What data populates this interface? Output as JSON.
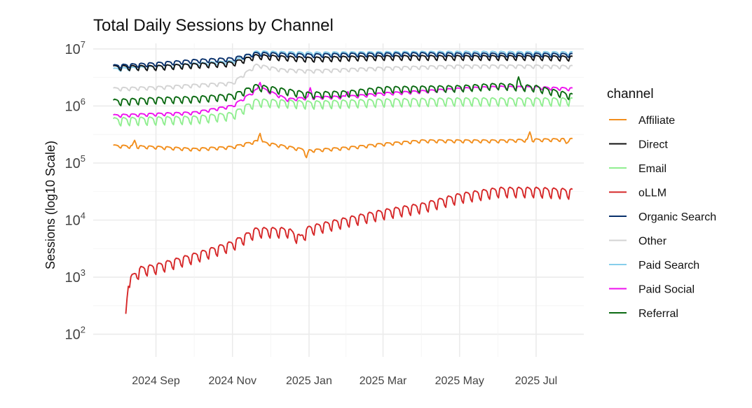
{
  "chart_data": {
    "type": "line",
    "title": "Total Daily Sessions by Channel",
    "xlabel": "",
    "ylabel": "Sessions (log10 Scale)",
    "yscale": "log10",
    "ylim": [
      40,
      12500000
    ],
    "xlim": [
      "2024-07-13",
      "2025-08-08"
    ],
    "grid": true,
    "legend_title": "channel",
    "legend_position": "right",
    "x_ticks": [
      {
        "date": "2024-09-01",
        "label": "2024 Sep"
      },
      {
        "date": "2024-11-01",
        "label": "2024 Nov"
      },
      {
        "date": "2025-01-01",
        "label": "2025 Jan"
      },
      {
        "date": "2025-03-01",
        "label": "2025 Mar"
      },
      {
        "date": "2025-05-01",
        "label": "2025 May"
      },
      {
        "date": "2025-07-01",
        "label": "2025 Jul"
      }
    ],
    "y_ticks": [
      {
        "value": 100,
        "base": "10",
        "exp": "2"
      },
      {
        "value": 1000,
        "base": "10",
        "exp": "3"
      },
      {
        "value": 10000,
        "base": "10",
        "exp": "4"
      },
      {
        "value": 100000,
        "base": "10",
        "exp": "5"
      },
      {
        "value": 1000000,
        "base": "10",
        "exp": "6"
      },
      {
        "value": 10000000,
        "base": "10",
        "exp": "7"
      }
    ],
    "series": [
      {
        "name": "Affiliate",
        "color": "#f28e1c",
        "start": "2024-07-29",
        "end": "2025-07-30",
        "points": [
          [
            "2024-07-29",
            200000
          ],
          [
            "2024-09-01",
            190000
          ],
          [
            "2024-10-01",
            175000
          ],
          [
            "2024-11-01",
            190000
          ],
          [
            "2024-11-20",
            240000
          ],
          [
            "2024-12-10",
            200000
          ],
          [
            "2025-01-01",
            165000
          ],
          [
            "2025-02-01",
            185000
          ],
          [
            "2025-03-01",
            215000
          ],
          [
            "2025-04-01",
            245000
          ],
          [
            "2025-05-01",
            245000
          ],
          [
            "2025-06-01",
            245000
          ],
          [
            "2025-07-01",
            255000
          ],
          [
            "2025-07-30",
            260000
          ]
        ],
        "amp": 0.06,
        "spikes": [
          [
            "2024-08-15",
            1.25
          ],
          [
            "2024-11-23",
            1.5
          ],
          [
            "2024-12-30",
            0.72
          ],
          [
            "2025-06-26",
            1.35
          ],
          [
            "2025-07-25",
            0.85
          ]
        ]
      },
      {
        "name": "Direct",
        "color": "#111111",
        "start": "2024-07-29",
        "end": "2025-07-30",
        "points": [
          [
            "2024-07-29",
            4800000
          ],
          [
            "2024-09-01",
            4800000
          ],
          [
            "2024-10-01",
            5200000
          ],
          [
            "2024-11-01",
            5600000
          ],
          [
            "2024-11-20",
            7500000
          ],
          [
            "2025-01-01",
            6700000
          ],
          [
            "2025-02-01",
            7000000
          ],
          [
            "2025-03-01",
            7200000
          ],
          [
            "2025-05-01",
            7200000
          ],
          [
            "2025-07-01",
            7200000
          ],
          [
            "2025-07-30",
            7000000
          ]
        ],
        "amp": 0.1,
        "spikes": []
      },
      {
        "name": "Email",
        "color": "#90ee90",
        "start": "2024-07-29",
        "end": "2025-07-30",
        "points": [
          [
            "2024-07-29",
            560000
          ],
          [
            "2024-09-01",
            580000
          ],
          [
            "2024-10-01",
            600000
          ],
          [
            "2024-11-01",
            700000
          ],
          [
            "2024-11-20",
            1200000
          ],
          [
            "2024-12-15",
            1150000
          ],
          [
            "2025-01-01",
            1100000
          ],
          [
            "2025-02-01",
            1150000
          ],
          [
            "2025-03-01",
            1200000
          ],
          [
            "2025-05-01",
            1250000
          ],
          [
            "2025-07-01",
            1250000
          ],
          [
            "2025-07-30",
            1250000
          ]
        ],
        "amp": 0.16,
        "spikes": []
      },
      {
        "name": "oLLM",
        "color": "#d62728",
        "start": "2024-08-08",
        "end": "2025-07-30",
        "points": [
          [
            "2024-08-08",
            210
          ],
          [
            "2024-08-10",
            850
          ],
          [
            "2024-08-20",
            1350
          ],
          [
            "2024-09-01",
            1500
          ],
          [
            "2024-10-01",
            2300
          ],
          [
            "2024-11-01",
            3800
          ],
          [
            "2024-11-20",
            6500
          ],
          [
            "2024-12-15",
            6500
          ],
          [
            "2024-12-25",
            4800
          ],
          [
            "2025-01-01",
            7000
          ],
          [
            "2025-02-01",
            10000
          ],
          [
            "2025-03-01",
            13500
          ],
          [
            "2025-04-01",
            17500
          ],
          [
            "2025-05-01",
            26000
          ],
          [
            "2025-06-01",
            33000
          ],
          [
            "2025-07-01",
            33000
          ],
          [
            "2025-07-30",
            31000
          ]
        ],
        "amp": 0.2,
        "spikes": []
      },
      {
        "name": "Organic Search",
        "color": "#08306b",
        "start": "2024-07-29",
        "end": "2025-07-30",
        "points": [
          [
            "2024-07-29",
            5000000
          ],
          [
            "2024-09-01",
            5500000
          ],
          [
            "2024-10-01",
            6200000
          ],
          [
            "2024-11-01",
            6700000
          ],
          [
            "2024-11-20",
            8300000
          ],
          [
            "2025-01-01",
            7800000
          ],
          [
            "2025-02-01",
            8000000
          ],
          [
            "2025-04-01",
            8200000
          ],
          [
            "2025-06-01",
            8000000
          ],
          [
            "2025-07-01",
            8000000
          ],
          [
            "2025-07-30",
            7900000
          ]
        ],
        "amp": 0.08,
        "spikes": []
      },
      {
        "name": "Other",
        "color": "#d3d3d3",
        "start": "2024-07-29",
        "end": "2025-07-30",
        "points": [
          [
            "2024-07-29",
            2000000
          ],
          [
            "2024-09-01",
            2100000
          ],
          [
            "2024-10-01",
            2300000
          ],
          [
            "2024-11-01",
            2500000
          ],
          [
            "2024-11-20",
            5200000
          ],
          [
            "2024-12-10",
            4300000
          ],
          [
            "2025-01-01",
            4100000
          ],
          [
            "2025-03-01",
            4600000
          ],
          [
            "2025-05-01",
            5000000
          ],
          [
            "2025-07-01",
            5000000
          ],
          [
            "2025-07-30",
            4900000
          ]
        ],
        "amp": 0.07,
        "spikes": []
      },
      {
        "name": "Paid Search",
        "color": "#87ceeb",
        "start": "2024-07-29",
        "end": "2025-07-30",
        "points": [
          [
            "2024-07-29",
            4400000
          ],
          [
            "2024-09-01",
            4800000
          ],
          [
            "2024-10-01",
            5400000
          ],
          [
            "2024-11-01",
            6000000
          ],
          [
            "2024-11-20",
            8800000
          ],
          [
            "2025-01-01",
            8400000
          ],
          [
            "2025-03-01",
            8600000
          ],
          [
            "2025-05-01",
            8700000
          ],
          [
            "2025-07-01",
            8600000
          ],
          [
            "2025-07-30",
            8500000
          ]
        ],
        "amp": 0.07,
        "spikes": []
      },
      {
        "name": "Paid Social",
        "color": "#ee10ee",
        "start": "2024-07-29",
        "end": "2025-07-30",
        "points": [
          [
            "2024-07-29",
            680000
          ],
          [
            "2024-09-01",
            720000
          ],
          [
            "2024-10-01",
            760000
          ],
          [
            "2024-11-01",
            1000000
          ],
          [
            "2024-11-23",
            2100000
          ],
          [
            "2024-12-15",
            1300000
          ],
          [
            "2025-01-01",
            1400000
          ],
          [
            "2025-02-01",
            1450000
          ],
          [
            "2025-03-01",
            1650000
          ],
          [
            "2025-04-01",
            1800000
          ],
          [
            "2025-05-01",
            2000000
          ],
          [
            "2025-06-01",
            2150000
          ],
          [
            "2025-07-01",
            2100000
          ],
          [
            "2025-07-30",
            2000000
          ]
        ],
        "amp": 0.06,
        "spikes": [
          [
            "2024-11-23",
            1.3
          ],
          [
            "2025-01-02",
            1.45
          ],
          [
            "2025-02-01",
            1.3
          ]
        ]
      },
      {
        "name": "Referral",
        "color": "#0b6a12",
        "start": "2024-07-29",
        "end": "2025-07-30",
        "points": [
          [
            "2024-07-29",
            1200000
          ],
          [
            "2024-09-01",
            1300000
          ],
          [
            "2024-10-01",
            1350000
          ],
          [
            "2024-11-01",
            1500000
          ],
          [
            "2024-11-20",
            2200000
          ],
          [
            "2025-01-01",
            1600000
          ],
          [
            "2025-02-01",
            1700000
          ],
          [
            "2025-03-01",
            2000000
          ],
          [
            "2025-05-01",
            2100000
          ],
          [
            "2025-06-01",
            2300000
          ],
          [
            "2025-07-01",
            2100000
          ],
          [
            "2025-07-30",
            1500000
          ]
        ],
        "amp": 0.13,
        "spikes": [
          [
            "2025-06-17",
            1.35
          ]
        ]
      }
    ]
  }
}
